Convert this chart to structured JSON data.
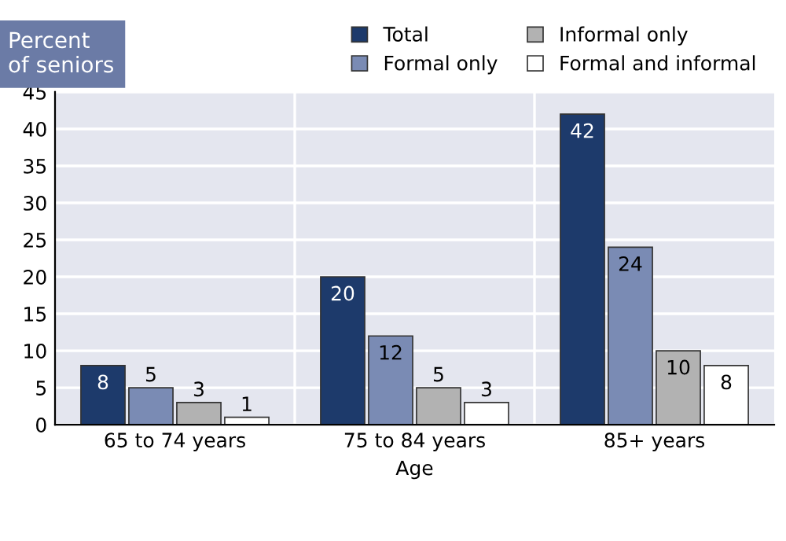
{
  "chart_data": {
    "type": "bar",
    "ylabel": "Percent\nof seniors",
    "xlabel": "Age",
    "categories": [
      "65 to 74 years",
      "75 to 84 years",
      "85+ years"
    ],
    "series": [
      {
        "name": "Total",
        "color": "#1d3a6b",
        "values": [
          8,
          20,
          42
        ]
      },
      {
        "name": "Formal only",
        "color": "#7a8bb4",
        "values": [
          5,
          12,
          24
        ]
      },
      {
        "name": "Informal only",
        "color": "#b2b2b2",
        "values": [
          3,
          5,
          10
        ]
      },
      {
        "name": "Formal and informal",
        "color": "#ffffff",
        "values": [
          1,
          3,
          8
        ]
      }
    ],
    "ylim": [
      0,
      45
    ],
    "yticks": [
      0,
      5,
      10,
      15,
      20,
      25,
      30,
      35,
      40,
      45
    ],
    "grid": "y",
    "legend": "top right",
    "data_labels": true
  }
}
